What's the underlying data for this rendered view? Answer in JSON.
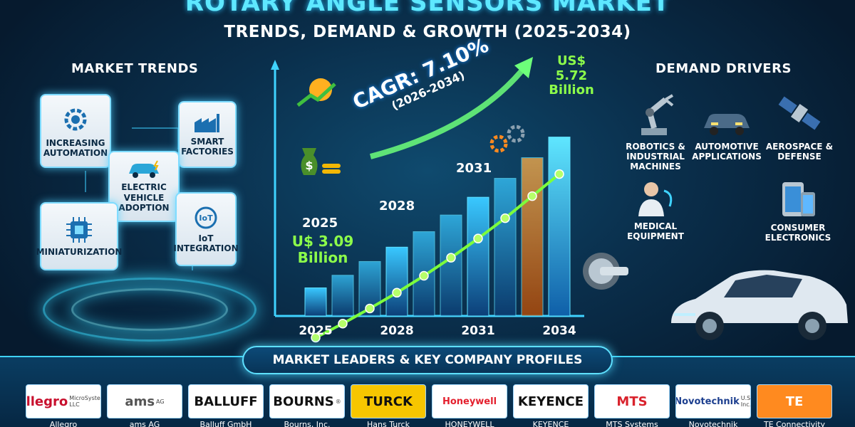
{
  "header": {
    "title": "ROTARY ANGLE SENSORS MARKET",
    "subtitle": "TRENDS, DEMAND & GROWTH (2025-2034)"
  },
  "trends": {
    "heading": "MARKET TRENDS",
    "items": [
      {
        "label": "INCREASING AUTOMATION",
        "icon": "gear-icon"
      },
      {
        "label": "SMART FACTORIES",
        "icon": "factory-icon"
      },
      {
        "label": "ELECTRIC VEHICLE ADOPTION",
        "icon": "ev-car-icon"
      },
      {
        "label": "MINIATURIZATION",
        "icon": "chip-icon"
      },
      {
        "label": "IoT INTEGRATION",
        "icon": "iot-icon"
      }
    ]
  },
  "drivers": {
    "heading": "DEMAND DRIVERS",
    "items": [
      {
        "label": "ROBOTICS & INDUSTRIAL MACHINES",
        "icon": "robot-arm-icon"
      },
      {
        "label": "AUTOMOTIVE APPLICATIONS",
        "icon": "car-icon"
      },
      {
        "label": "AEROSPACE & DEFENSE",
        "icon": "satellite-icon"
      },
      {
        "label": "MEDICAL EQUIPMENT",
        "icon": "doctor-icon"
      },
      {
        "label": "CONSUMER ELECTRONICS",
        "icon": "devices-icon"
      }
    ]
  },
  "chart_data": {
    "type": "bar",
    "categories": [
      "2025",
      "2028",
      "2031",
      "2034"
    ],
    "bar_heights_note": "",
    "bars": [
      {
        "year": "2025",
        "value": 3.09
      },
      {
        "year": "2026",
        "value": 3.31
      },
      {
        "year": "2027",
        "value": 3.55
      },
      {
        "year": "2028",
        "value": 3.8
      },
      {
        "year": "2029",
        "value": 4.07
      },
      {
        "year": "2030",
        "value": 4.36
      },
      {
        "year": "2031",
        "value": 4.67
      },
      {
        "year": "2032",
        "value": 5.0
      },
      {
        "year": "2033",
        "value": 5.36
      },
      {
        "year": "2034",
        "value": 5.72
      }
    ],
    "ylim": [
      2.6,
      6.0
    ],
    "start_label": {
      "year": "2025",
      "line1": "U$ 3.09",
      "line2": "Billion"
    },
    "end_label": {
      "line1": "US$",
      "line2": "5.72",
      "line3": "Billion"
    },
    "cagr": {
      "value": "CAGR: 7.10%",
      "period": "(2026-2034)"
    },
    "year_labels_top": [
      "2028",
      "2031"
    ],
    "colors": {
      "bar": "#1e7fd8",
      "line": "#7dff3c",
      "accent_bar": "#ff8a1f",
      "arrow": "#6dff7a"
    }
  },
  "leaders": {
    "heading": "MARKET LEADERS & KEY COMPANY PROFILES",
    "companies": [
      {
        "logo": "Allegro",
        "logo_sub": "MicroSystems, LLC",
        "name": "Allegro",
        "color": "#c8102e"
      },
      {
        "logo": "ams",
        "logo_sub": "AG",
        "name": "ams AG",
        "color": "#555555"
      },
      {
        "logo": "BALLUFF",
        "logo_sub": "",
        "name": "Balluff GmbH",
        "color": "#111111"
      },
      {
        "logo": "BOURNS",
        "logo_sub": "®",
        "name": "Bourns, Inc.",
        "color": "#111111"
      },
      {
        "logo": "TURCK",
        "logo_sub": "",
        "name": "Hans Turck",
        "color": "#111111"
      },
      {
        "logo": "Honeywell",
        "logo_sub": "",
        "name": "HONEYWELL",
        "color": "#e4202e"
      },
      {
        "logo": "KEYENCE",
        "logo_sub": "",
        "name": "KEYENCE",
        "color": "#111111"
      },
      {
        "logo": "MTS",
        "logo_sub": "",
        "name": "MTS Systems",
        "color": "#d9232d"
      },
      {
        "logo": "Novotechnik",
        "logo_sub": "U.S. Inc.",
        "name": "Novotechnik",
        "color": "#1d3f8f"
      },
      {
        "logo": "TE",
        "logo_sub": "",
        "name": "TE Connectivity",
        "color": "#ffffff"
      }
    ]
  }
}
